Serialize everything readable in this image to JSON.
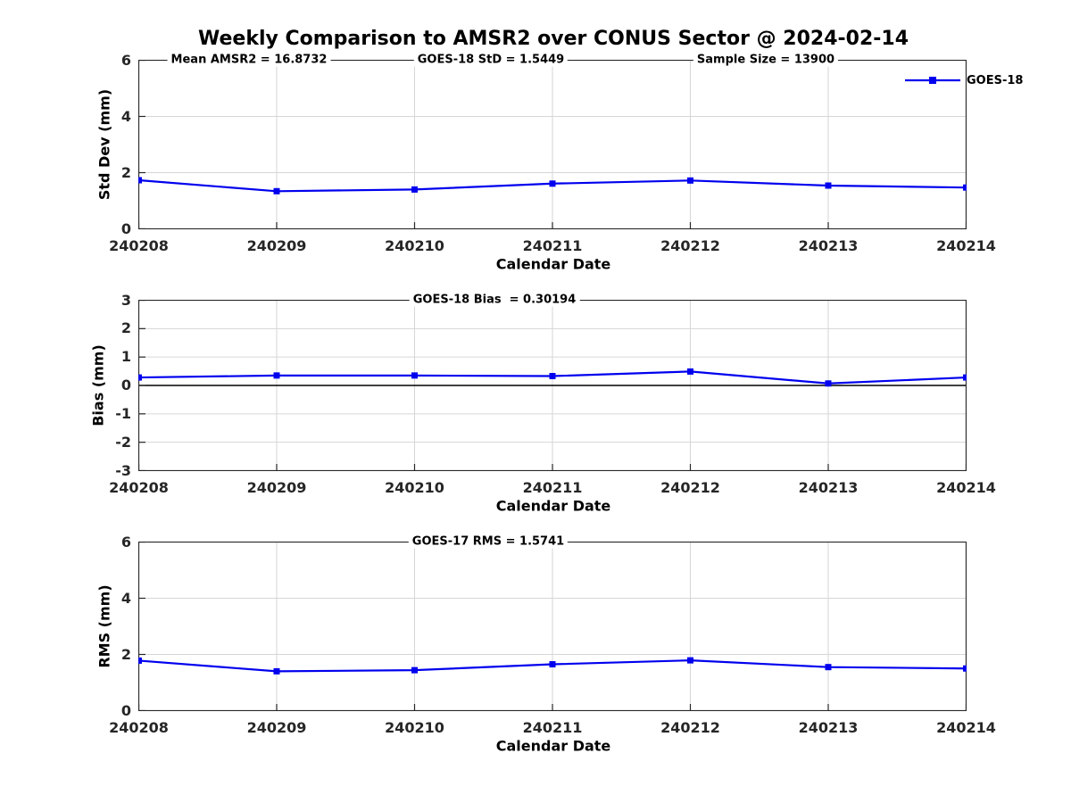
{
  "title": "Weekly Comparison to AMSR2 over CONUS Sector @ 2024-02-14",
  "legend": {
    "label": "GOES-18",
    "position": "top-right-outside"
  },
  "colors": {
    "series_line": "#0000EE",
    "grid": "#D6D6D6",
    "axis": "#262626",
    "zero_line": "#000000",
    "background": "#FFFFFF"
  },
  "chart_data": [
    {
      "type": "line",
      "name": "std-dev-panel",
      "annotations": [
        "Mean AMSR2 = 16.8732",
        "GOES-18 StD = 1.5449",
        "Sample Size = 13900"
      ],
      "categories": [
        "240208",
        "240209",
        "240210",
        "240211",
        "240212",
        "240213",
        "240214"
      ],
      "series": [
        {
          "name": "GOES-18",
          "marker": "square",
          "color": "#0000EE",
          "values": [
            1.73,
            1.34,
            1.4,
            1.61,
            1.72,
            1.54,
            1.47
          ]
        }
      ],
      "xlabel": "Calendar Date",
      "ylabel": "Std Dev (mm)",
      "ylim": [
        0,
        6
      ],
      "yticks": [
        0,
        2,
        4,
        6
      ],
      "grid": true,
      "zero_line": false
    },
    {
      "type": "line",
      "name": "bias-panel",
      "annotations": [
        "GOES-18 Bias  = 0.30194"
      ],
      "categories": [
        "240208",
        "240209",
        "240210",
        "240211",
        "240212",
        "240213",
        "240214"
      ],
      "series": [
        {
          "name": "GOES-18",
          "marker": "square",
          "color": "#0000EE",
          "values": [
            0.28,
            0.35,
            0.35,
            0.33,
            0.49,
            0.07,
            0.28
          ]
        }
      ],
      "xlabel": "Calendar Date",
      "ylabel": "Bias (mm)",
      "ylim": [
        -3,
        3
      ],
      "yticks": [
        -3,
        -2,
        -1,
        0,
        1,
        2,
        3
      ],
      "grid": true,
      "zero_line": true
    },
    {
      "type": "line",
      "name": "rms-panel",
      "annotations": [
        "GOES-17 RMS = 1.5741"
      ],
      "categories": [
        "240208",
        "240209",
        "240210",
        "240211",
        "240212",
        "240213",
        "240214"
      ],
      "series": [
        {
          "name": "GOES-18",
          "marker": "square",
          "color": "#0000EE",
          "values": [
            1.78,
            1.4,
            1.44,
            1.65,
            1.79,
            1.55,
            1.5
          ]
        }
      ],
      "xlabel": "Calendar Date",
      "ylabel": "RMS (mm)",
      "ylim": [
        0,
        6
      ],
      "yticks": [
        0,
        2,
        4,
        6
      ],
      "grid": true,
      "zero_line": false
    }
  ]
}
